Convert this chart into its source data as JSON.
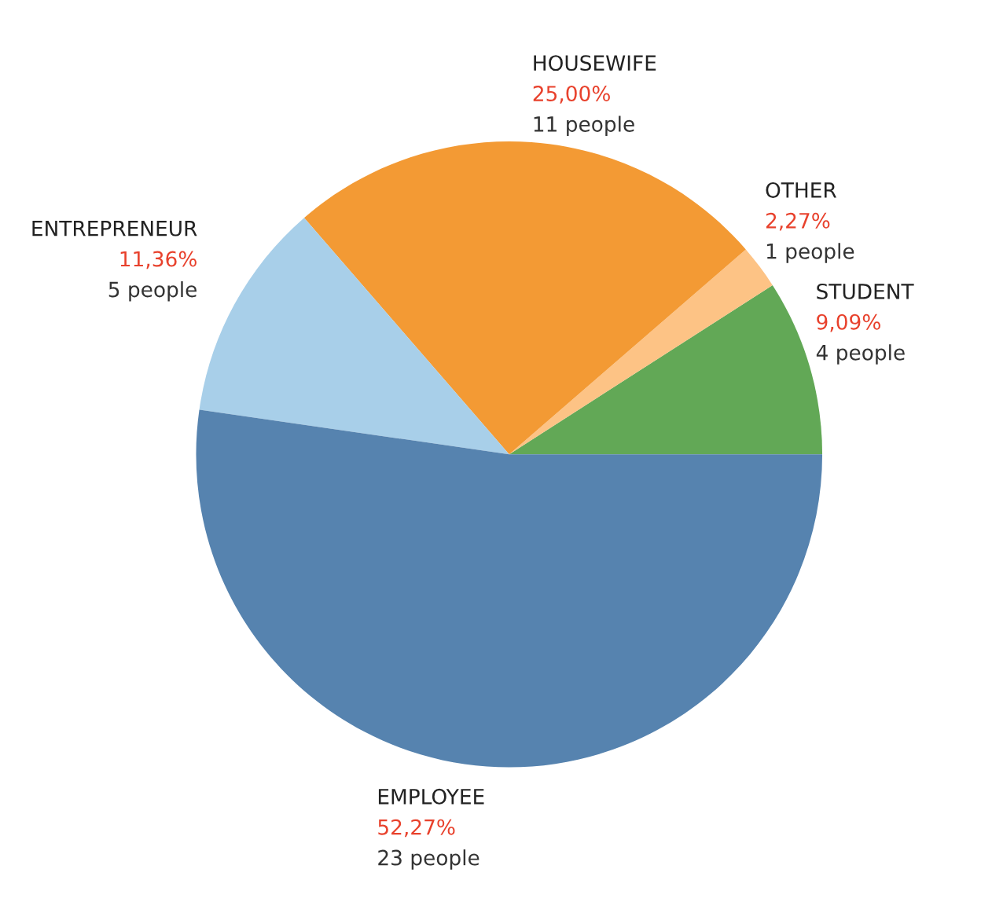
{
  "chart_data": {
    "type": "pie",
    "categories": [
      "STUDENT",
      "OTHER",
      "HOUSEWIFE",
      "ENTREPRENEUR",
      "EMPLOYEE"
    ],
    "values": [
      9.09,
      2.27,
      25.0,
      11.36,
      52.27
    ],
    "colors": [
      "#62a856",
      "#fdc385",
      "#f39a34",
      "#a8cfe9",
      "#5683af"
    ],
    "value_labels": [
      "9,09%",
      "2,27%",
      "25,00%",
      "11,36%",
      "52,27%"
    ],
    "annotations": [
      {
        "text": "4 people",
        "x": "STUDENT"
      },
      {
        "text": "1 people",
        "x": "OTHER"
      },
      {
        "text": "11 people",
        "x": "HOUSEWIFE"
      },
      {
        "text": "5 people",
        "x": "ENTREPRENEUR"
      },
      {
        "text": "23 people",
        "x": "EMPLOYEE"
      }
    ]
  }
}
